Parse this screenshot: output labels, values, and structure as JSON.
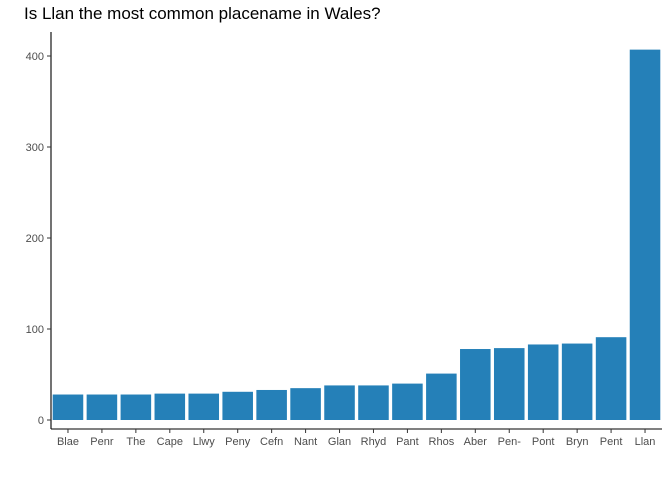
{
  "chart_data": {
    "type": "bar",
    "title": "Is Llan the most common placename in Wales?",
    "xlabel": "",
    "ylabel": "",
    "categories": [
      "Blae",
      "Penr",
      "The",
      "Cape",
      "Llwy",
      "Peny",
      "Cefn",
      "Nant",
      "Glan",
      "Rhyd",
      "Pant",
      "Rhos",
      "Aber",
      "Pen-",
      "Pont",
      "Bryn",
      "Pent",
      "Llan"
    ],
    "values": [
      28,
      28,
      28,
      29,
      29,
      31,
      33,
      35,
      38,
      38,
      40,
      51,
      78,
      79,
      83,
      84,
      91,
      407
    ],
    "ylim": [
      0,
      425
    ],
    "yticks": [
      0,
      100,
      200,
      300,
      400
    ],
    "grid": false,
    "bar_color": "#2580b8",
    "legend": "none"
  }
}
